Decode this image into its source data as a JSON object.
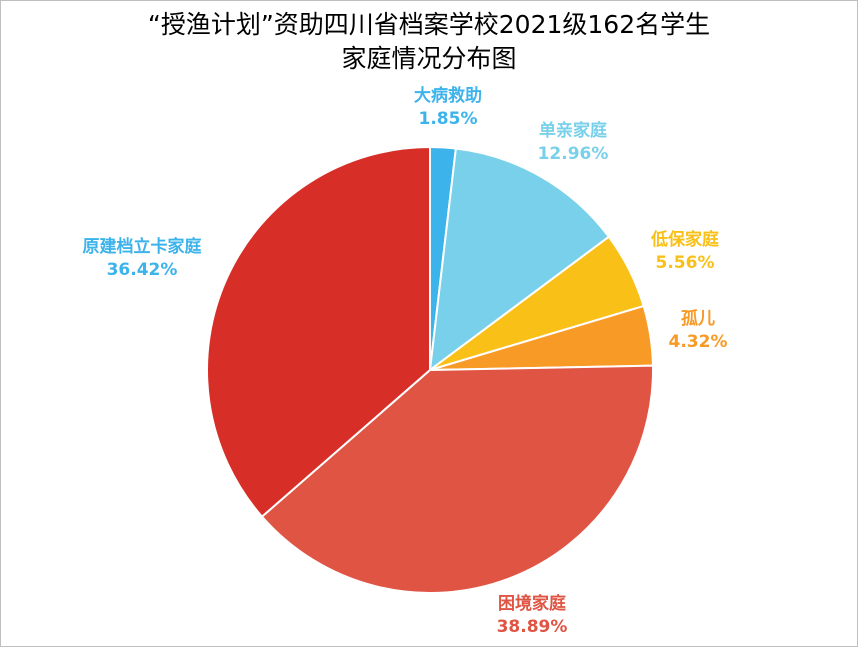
{
  "title": {
    "line1": "“授渔计划”资助四川省档案学校2021级162名学生",
    "line2": "家庭情况分布图"
  },
  "chart_data": {
    "type": "pie",
    "title": "“授渔计划”资助四川省档案学校2021级162名学生家庭情况分布图",
    "legend": "none",
    "start": "top, clockwise",
    "slices": [
      {
        "name": "大病救助",
        "value": 1.85,
        "label": "1.85%",
        "color": "#3db3ec"
      },
      {
        "name": "单亲家庭",
        "value": 12.96,
        "label": "12.96%",
        "color": "#79d0ea"
      },
      {
        "name": "低保家庭",
        "value": 5.56,
        "label": "5.56%",
        "color": "#f9c017"
      },
      {
        "name": "孤儿",
        "value": 4.32,
        "label": "4.32%",
        "color": "#f89a26"
      },
      {
        "name": "困境家庭",
        "value": 38.89,
        "label": "38.89%",
        "color": "#e05443"
      },
      {
        "name": "原建档立卡家庭",
        "value": 36.42,
        "label": "36.42%",
        "color": "#d72f27"
      }
    ]
  },
  "label_colors": {
    "大病救助": "#3db3ec",
    "单亲家庭": "#79d0ea",
    "低保家庭": "#f9c017",
    "孤儿": "#f89a26",
    "困境家庭": "#e05443",
    "原建档立卡家庭": "#3db3ec"
  }
}
